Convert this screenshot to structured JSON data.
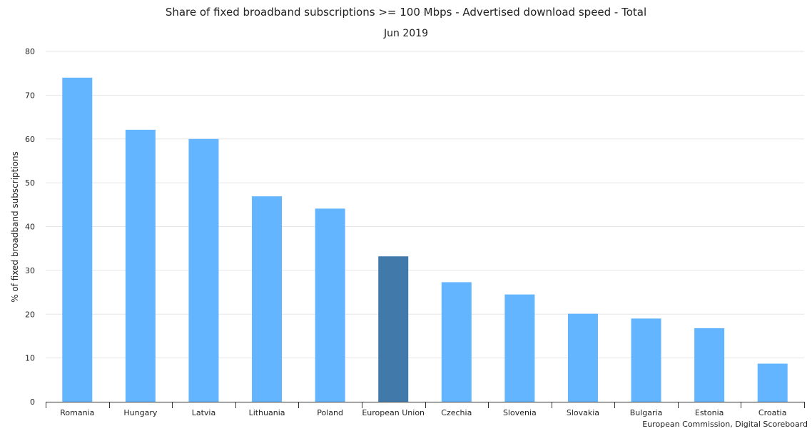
{
  "chart_data": {
    "type": "bar",
    "title": "Share of fixed broadband subscriptions >= 100 Mbps - Advertised download speed - Total",
    "subtitle": "Jun 2019",
    "ylabel": "% of fixed broadband subscriptions",
    "xlabel": "",
    "ylim": [
      0,
      80
    ],
    "yticks": [
      0,
      10,
      20,
      30,
      40,
      50,
      60,
      70,
      80
    ],
    "grid": true,
    "categories": [
      "Romania",
      "Hungary",
      "Latvia",
      "Lithuania",
      "Poland",
      "European Union",
      "Czechia",
      "Slovenia",
      "Slovakia",
      "Bulgaria",
      "Estonia",
      "Croatia"
    ],
    "values": [
      74.0,
      62.1,
      60.0,
      46.9,
      44.1,
      33.2,
      27.3,
      24.5,
      20.1,
      19.0,
      16.8,
      8.7
    ],
    "highlight": "European Union",
    "colors": {
      "bar": "#63b5ff",
      "highlight": "#4079aa",
      "grid": "#e6e6e6",
      "axis": "#333333",
      "text": "#222222"
    },
    "credits": "European Commission, Digital Scoreboard"
  }
}
